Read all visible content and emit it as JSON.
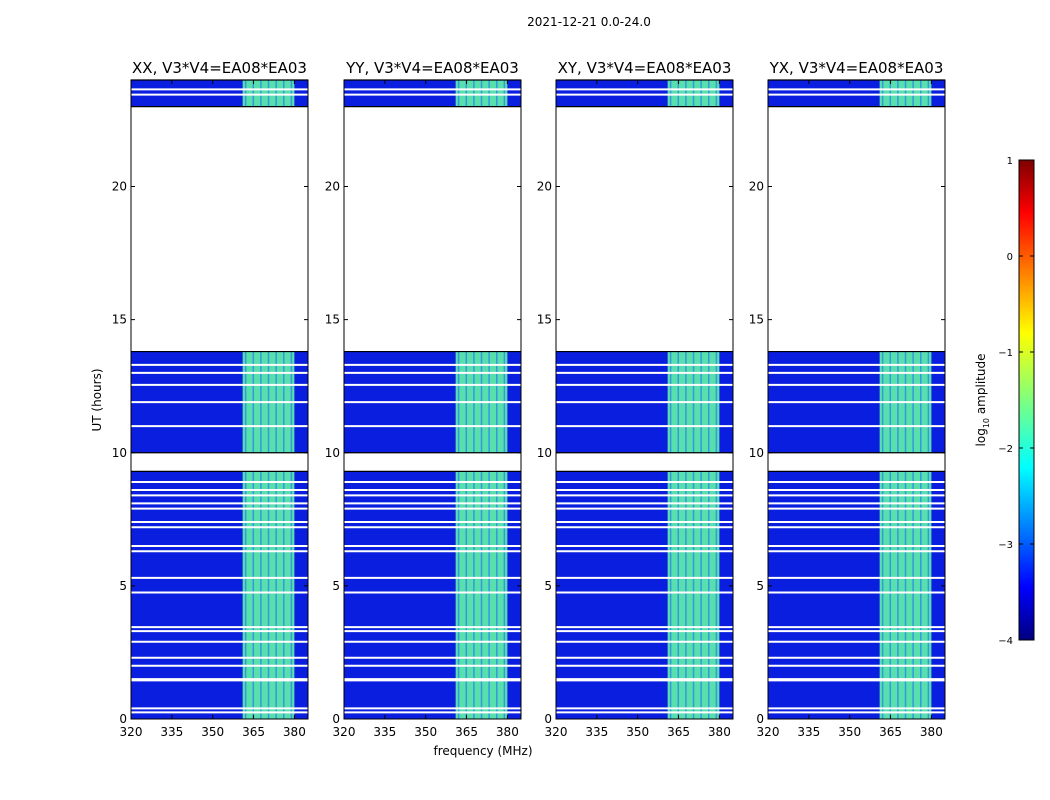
{
  "chart_data": {
    "type": "heatmap",
    "title": "2021-12-21 0.0-24.0",
    "xlabel": "frequency (MHz)",
    "ylabel": "UT (hours)",
    "xlim": [
      320,
      385
    ],
    "ylim": [
      0,
      24
    ],
    "xticks": [
      320,
      335,
      350,
      365,
      380
    ],
    "yticks": [
      0,
      5,
      10,
      15,
      20
    ],
    "panels": [
      {
        "title": "XX, V3*V4=EA08*EA03",
        "band_mhz": [
          361,
          380
        ]
      },
      {
        "title": "YY, V3*V4=EA08*EA03",
        "band_mhz": [
          361,
          380
        ]
      },
      {
        "title": "XY, V3*V4=EA08*EA03",
        "band_mhz": [
          361,
          380
        ]
      },
      {
        "title": "YX, V3*V4=EA08*EA03",
        "band_mhz": [
          361,
          380
        ]
      }
    ],
    "data_blocks_hours": [
      [
        0.0,
        9.3
      ],
      [
        10.0,
        13.8
      ],
      [
        23.0,
        24.0
      ]
    ],
    "gap_lines_hours": [
      0.25,
      0.4,
      1.45,
      1.5,
      2.0,
      2.3,
      2.9,
      3.3,
      3.45,
      4.75,
      5.3,
      6.3,
      6.5,
      7.2,
      7.4,
      7.9,
      8.1,
      8.4,
      8.6,
      8.9,
      11.0,
      11.9,
      12.55,
      13.0,
      13.3,
      23.45,
      23.65
    ],
    "colorbar": {
      "label": "log10 amplitude",
      "label_main": "log",
      "label_sub": "10",
      "label_rest": " amplitude",
      "range": [
        -4,
        1
      ],
      "ticks": [
        "1",
        "0",
        "−1",
        "−2",
        "−3",
        "−4"
      ],
      "colormap": "jet"
    },
    "colors": {
      "background_value": "#0a1ee0",
      "band_value": "#5ef0a8"
    }
  }
}
